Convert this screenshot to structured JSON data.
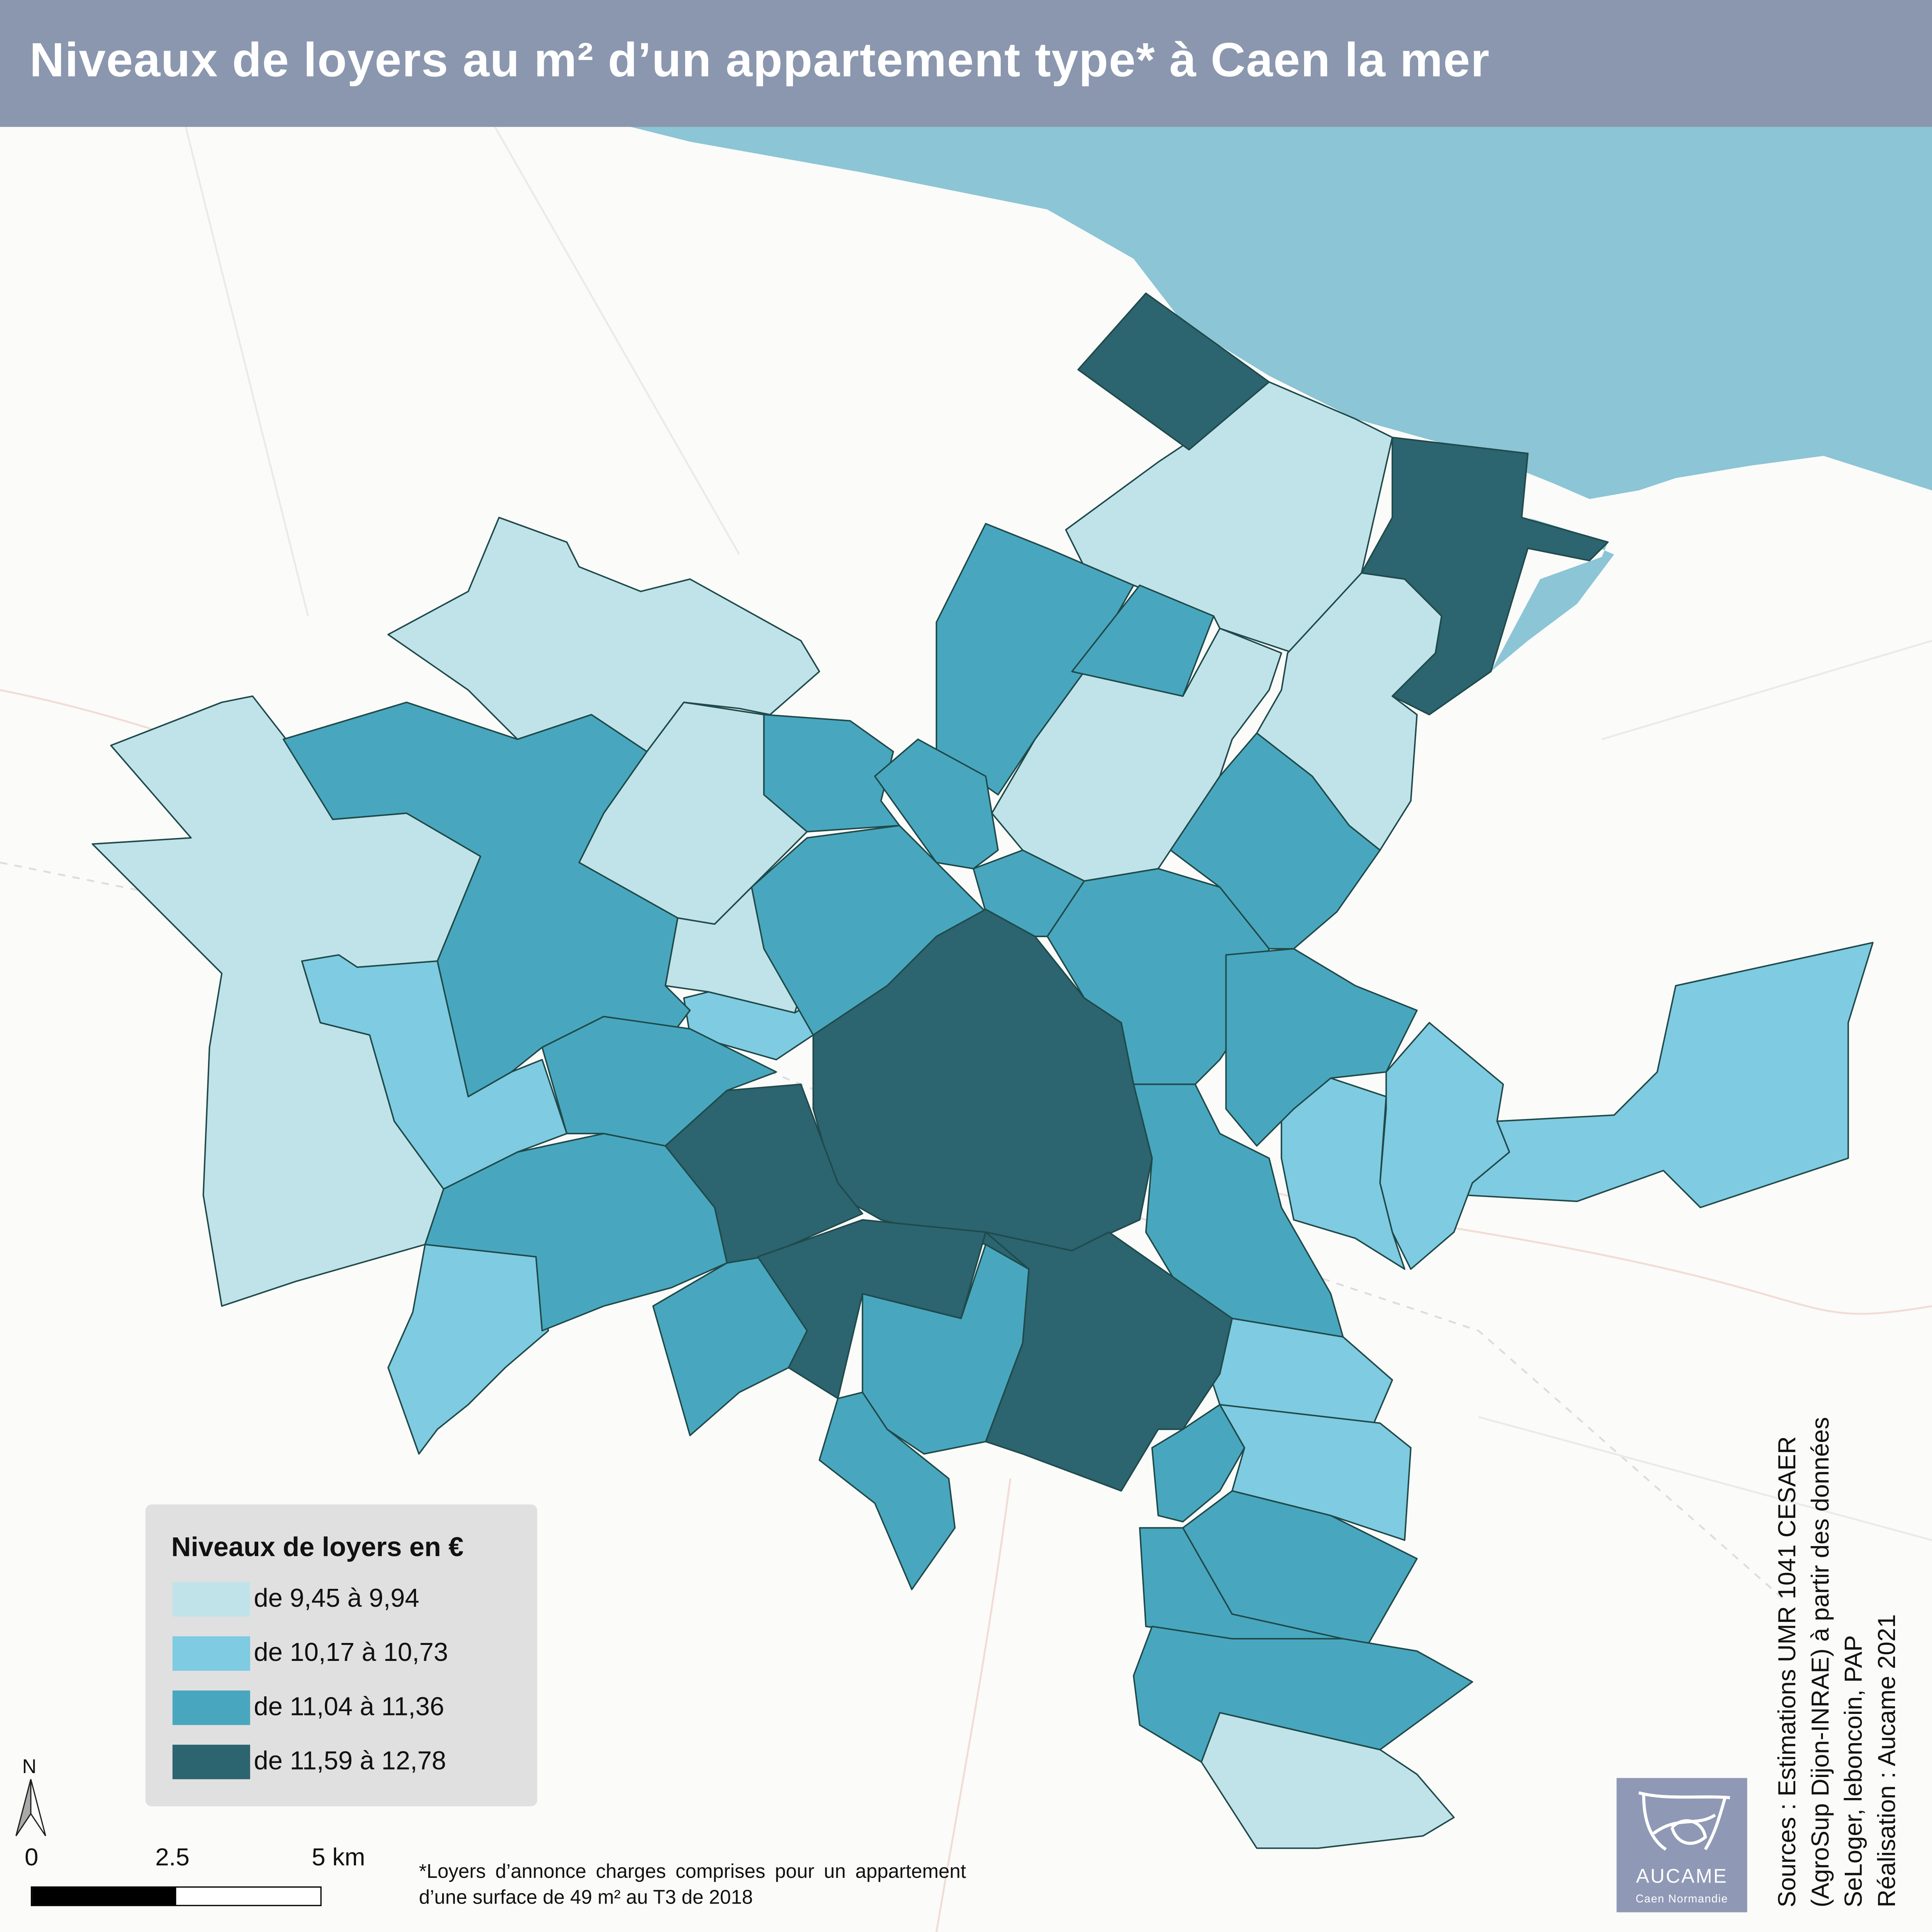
{
  "title": "Niveaux de loyers au m² d’un appartement type* à Caen la mer",
  "legend": {
    "title": "Niveaux de loyers en €",
    "classes": [
      {
        "label": "de 9,45 à 9,94",
        "color": "#c0e3ea"
      },
      {
        "label": "de 10,17 à 10,73",
        "color": "#7fcbe1"
      },
      {
        "label": "de 11,04 à 11,36",
        "color": "#48a7be"
      },
      {
        "label": "de 11,59 à 12,78",
        "color": "#2c6470"
      }
    ]
  },
  "north_arrow": {
    "label": "N"
  },
  "scale_bar": {
    "labels": [
      "0",
      "2.5",
      "5 km"
    ]
  },
  "footnote": "*Loyers d’annonce charges comprises pour un appartement d’une surface de 49 m² au T3 de 2018",
  "sources": [
    "Sources : Estimations UMR 1041 CESAER",
    "(AgroSup Dijon-INRAE) à partir des données",
    "SeLoger, leboncoin, PAP",
    "Réalisation : Aucame 2021"
  ],
  "logo": {
    "name": "AUCAME",
    "subtitle": "Caen Normandie",
    "color": "#8f98b5"
  },
  "colors": {
    "sea": "#8bc5d6",
    "header": "#8a97ae"
  }
}
